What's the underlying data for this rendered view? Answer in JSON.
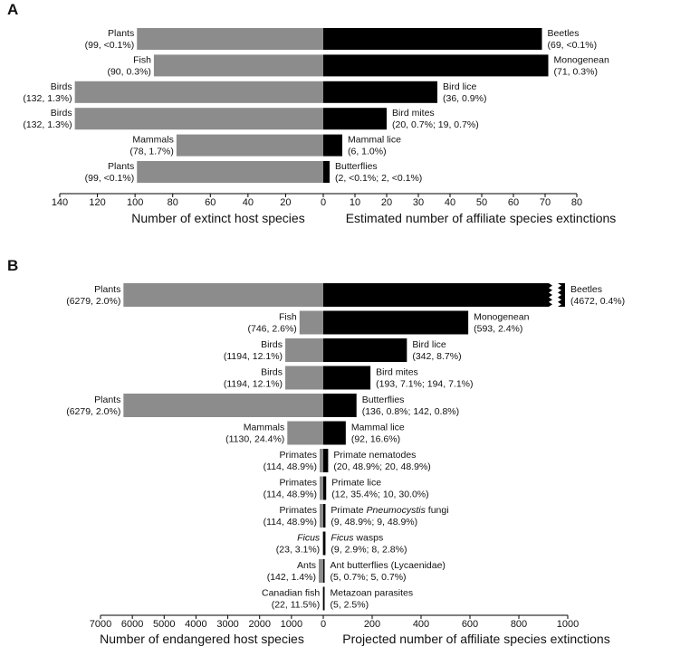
{
  "chart_data": [
    {
      "type": "bar",
      "panel": "A",
      "orientation": "horizontal",
      "left": {
        "xlabel": "Number of extinct host species",
        "ticks": [
          140,
          120,
          100,
          80,
          60,
          40,
          20,
          0
        ],
        "xlim": [
          0,
          140
        ],
        "color": "#8c8c8c"
      },
      "right": {
        "xlabel": "Estimated number of affiliate species extinctions",
        "ticks": [
          0,
          10,
          20,
          30,
          40,
          50,
          60,
          70,
          80
        ],
        "xlim": [
          0,
          80
        ],
        "color": "#000000"
      },
      "rows": [
        {
          "host": "Plants",
          "host_stat": "(99, <0.1%)",
          "host_value": 99,
          "affiliate": "Beetles",
          "affiliate_stat": "(69, <0.1%)",
          "affiliate_value": 69
        },
        {
          "host": "Fish",
          "host_stat": "(90, 0.3%)",
          "host_value": 90,
          "affiliate": "Monogenean",
          "affiliate_stat": "(71, 0.3%)",
          "affiliate_value": 71
        },
        {
          "host": "Birds",
          "host_stat": "(132, 1.3%)",
          "host_value": 132,
          "affiliate": "Bird lice",
          "affiliate_stat": "(36, 0.9%)",
          "affiliate_value": 36
        },
        {
          "host": "Birds",
          "host_stat": "(132, 1.3%)",
          "host_value": 132,
          "affiliate": "Bird mites",
          "affiliate_stat": "(20, 0.7%; 19, 0.7%)",
          "affiliate_value": 20
        },
        {
          "host": "Mammals",
          "host_stat": "(78, 1.7%)",
          "host_value": 78,
          "affiliate": "Mammal lice",
          "affiliate_stat": "(6, 1.0%)",
          "affiliate_value": 6
        },
        {
          "host": "Plants",
          "host_stat": "(99, <0.1%)",
          "host_value": 99,
          "affiliate": "Butterflies",
          "affiliate_stat": "(2, <0.1%; 2, <0.1%)",
          "affiliate_value": 2
        }
      ]
    },
    {
      "type": "bar",
      "panel": "B",
      "orientation": "horizontal",
      "left": {
        "xlabel": "Number of endangered host species",
        "ticks": [
          7000,
          6000,
          5000,
          4000,
          3000,
          2000,
          1000,
          0
        ],
        "xlim": [
          0,
          7000
        ],
        "color": "#8c8c8c"
      },
      "right": {
        "xlabel": "Projected number of affiliate species extinctions",
        "ticks": [
          0,
          200,
          400,
          600,
          800,
          1000
        ],
        "xlim": [
          0,
          1000
        ],
        "color": "#000000"
      },
      "rows": [
        {
          "host": "Plants",
          "host_stat": "(6279, 2.0%)",
          "host_value": 6279,
          "affiliate": "Beetles",
          "affiliate_stat": "(4672, 0.4%)",
          "affiliate_value": 4672,
          "axis_break": true
        },
        {
          "host": "Fish",
          "host_stat": "(746, 2.6%)",
          "host_value": 746,
          "affiliate": "Monogenean",
          "affiliate_stat": "(593, 2.4%)",
          "affiliate_value": 593
        },
        {
          "host": "Birds",
          "host_stat": "(1194, 12.1%)",
          "host_value": 1194,
          "affiliate": "Bird lice",
          "affiliate_stat": "(342, 8.7%)",
          "affiliate_value": 342
        },
        {
          "host": "Birds",
          "host_stat": "(1194, 12.1%)",
          "host_value": 1194,
          "affiliate": "Bird mites",
          "affiliate_stat": "(193, 7.1%; 194, 7.1%)",
          "affiliate_value": 193
        },
        {
          "host": "Plants",
          "host_stat": "(6279, 2.0%)",
          "host_value": 6279,
          "affiliate": "Butterflies",
          "affiliate_stat": "(136, 0.8%; 142, 0.8%)",
          "affiliate_value": 136
        },
        {
          "host": "Mammals",
          "host_stat": "(1130, 24.4%)",
          "host_value": 1130,
          "affiliate": "Mammal lice",
          "affiliate_stat": "(92, 16.6%)",
          "affiliate_value": 92
        },
        {
          "host": "Primates",
          "host_stat": "(114, 48.9%)",
          "host_value": 114,
          "affiliate": "Primate nematodes",
          "affiliate_stat": "(20, 48.9%; 20, 48.9%)",
          "affiliate_value": 20
        },
        {
          "host": "Primates",
          "host_stat": "(114, 48.9%)",
          "host_value": 114,
          "affiliate": "Primate lice",
          "affiliate_stat": "(12, 35.4%; 10, 30.0%)",
          "affiliate_value": 12
        },
        {
          "host": "Primates",
          "host_stat": "(114, 48.9%)",
          "host_value": 114,
          "affiliate": "Primate Pneumocystis fungi",
          "affiliate_parts": [
            "Primate ",
            "Pneumocystis",
            " fungi"
          ],
          "affiliate_stat": "(9, 48.9%; 9, 48.9%)",
          "affiliate_value": 9
        },
        {
          "host": "Ficus",
          "host_italic": true,
          "host_stat": "(23, 3.1%)",
          "host_value": 23,
          "affiliate": "Ficus wasps",
          "affiliate_parts": [
            "Ficus",
            " wasps"
          ],
          "affiliate_stat": "(9, 2.9%; 8, 2.8%)",
          "affiliate_value": 9
        },
        {
          "host": "Ants",
          "host_stat": "(142, 1.4%)",
          "host_value": 142,
          "affiliate": "Ant butterflies (Lycaenidae)",
          "affiliate_stat": "(5, 0.7%; 5, 0.7%)",
          "affiliate_value": 5
        },
        {
          "host": "Canadian fish",
          "host_stat": "(22, 11.5%)",
          "host_value": 22,
          "affiliate": "Metazoan parasites",
          "affiliate_stat": "(5, 2.5%)",
          "affiliate_value": 5
        }
      ]
    }
  ]
}
